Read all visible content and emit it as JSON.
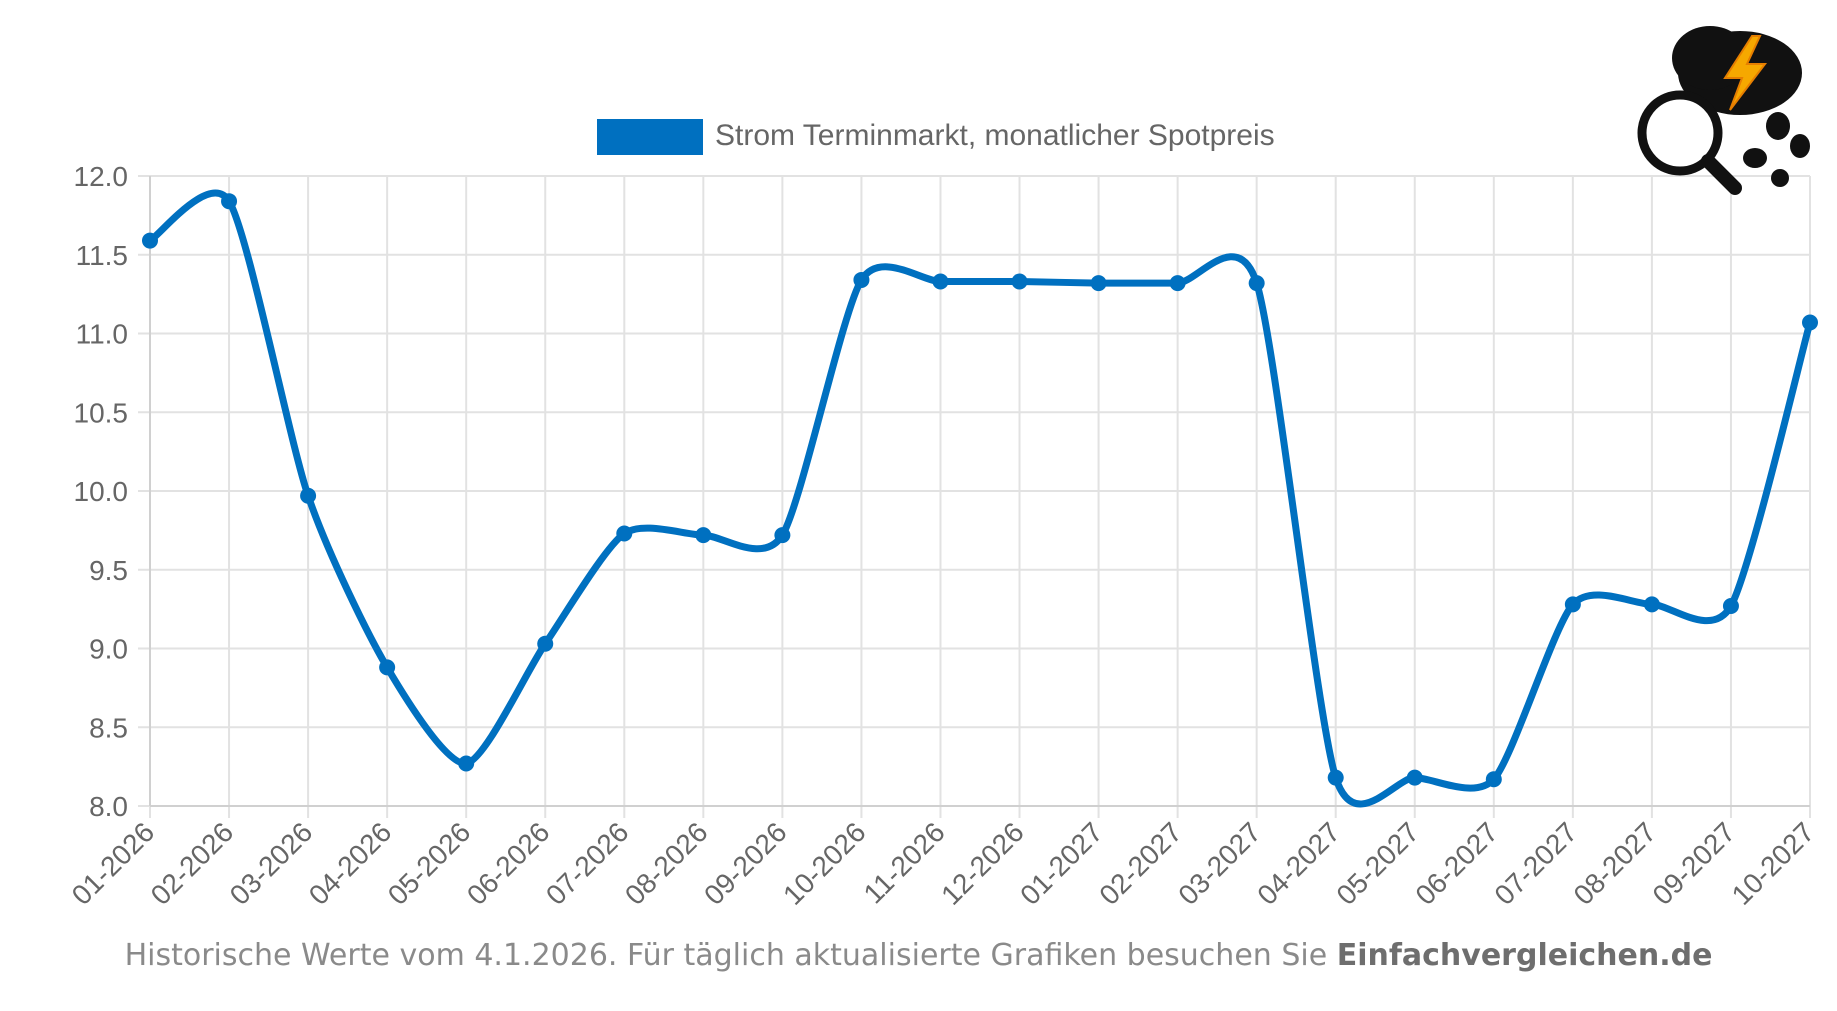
{
  "chart_data": {
    "type": "line",
    "categories": [
      "01-2026",
      "02-2026",
      "03-2026",
      "04-2026",
      "05-2026",
      "06-2026",
      "07-2026",
      "08-2026",
      "09-2026",
      "10-2026",
      "11-2026",
      "12-2026",
      "01-2027",
      "02-2027",
      "03-2027",
      "04-2027",
      "05-2027",
      "06-2027",
      "07-2027",
      "08-2027",
      "09-2027",
      "10-2027"
    ],
    "series": [
      {
        "name": "Strom Terminmarkt, monatlicher Spotpreis",
        "color": "#0070c0",
        "values": [
          11.59,
          11.84,
          9.97,
          8.88,
          8.27,
          9.03,
          9.73,
          9.72,
          9.72,
          11.34,
          11.33,
          11.33,
          11.32,
          11.32,
          11.32,
          8.18,
          8.18,
          8.17,
          9.28,
          9.28,
          9.27,
          11.07
        ]
      }
    ],
    "yticks": [
      "12.0",
      "11.5",
      "11.0",
      "10.5",
      "10.0",
      "9.5",
      "9.0",
      "8.5",
      "8.0"
    ],
    "ylim": [
      8.0,
      12.0
    ],
    "grid": true,
    "legend_position": "top-center"
  },
  "footer": {
    "text": "Historische Werte vom 4.1.2026. Für täglich aktualisierte Grafiken besuchen Sie ",
    "brand": "Einfachvergleichen.de"
  },
  "logo": {
    "icon": "magnifier-lightning-cloud-icon"
  }
}
